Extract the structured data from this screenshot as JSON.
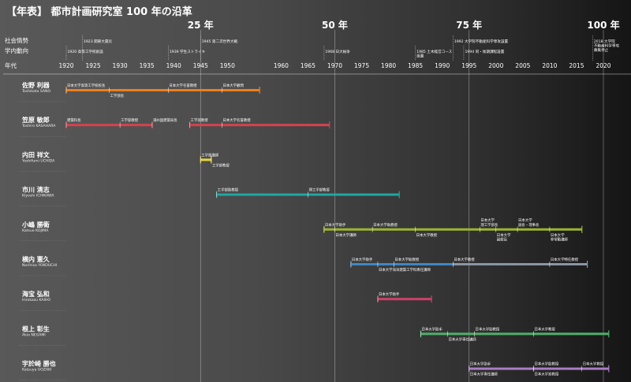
{
  "title": "【年表】 都市計画研究室 100 年の沿革",
  "row_labels": {
    "social": "社会情勢",
    "campus": "学内動向",
    "year": "年代"
  },
  "chart_data": {
    "type": "timeline",
    "x_range": [
      1920,
      2020
    ],
    "x_ticks": [
      1920,
      1925,
      1930,
      1935,
      1940,
      1945,
      1950,
      1960,
      1965,
      1970,
      1975,
      1980,
      1985,
      1990,
      1995,
      2000,
      2005,
      2010,
      2015,
      2020
    ],
    "anniversaries": [
      {
        "year": 1945,
        "label": "25 年"
      },
      {
        "year": 1970,
        "label": "50 年"
      },
      {
        "year": 1995,
        "label": "75 年"
      },
      {
        "year": 2020,
        "label": "100 年"
      }
    ],
    "social_events": [
      {
        "year": 1923,
        "lines": [
          "1923 関東大震災"
        ]
      },
      {
        "year": 1945,
        "lines": [
          "1945 第二次世界大戦"
        ]
      },
      {
        "year": 1992,
        "lines": [
          "1992 大学院不動産科学専攻設置"
        ]
      },
      {
        "year": 2018,
        "lines": [
          "2018 大学院",
          "不動産科学専攻",
          "募集停止"
        ]
      }
    ],
    "campus_events": [
      {
        "year": 1920,
        "lines": [
          "1920 高等工学校創設"
        ]
      },
      {
        "year": 1939,
        "lines": [
          "1939 学生ストライキ"
        ]
      },
      {
        "year": 1968,
        "lines": [
          "1968 日大紛争"
        ]
      },
      {
        "year": 1985,
        "lines": [
          "1985 土木経営コース",
          "設置"
        ]
      },
      {
        "year": 1994,
        "lines": [
          "1994 同・後期課程設置"
        ]
      }
    ],
    "people": [
      {
        "name": "佐野 利器",
        "roman": "Toshikata SANO",
        "color": "#f07e1a",
        "start": 1920,
        "end": 1956,
        "labels": [
          {
            "year": 1920,
            "pos": "above",
            "text": "日本大学高等工学校校長"
          },
          {
            "year": 1939,
            "pos": "above",
            "text": "日本大学名誉教授"
          },
          {
            "year": 1949,
            "pos": "above",
            "text": "日本大学顧問"
          },
          {
            "year": 1928,
            "pos": "below",
            "text": "工学部長"
          }
        ]
      },
      {
        "name": "笠原 敏郎",
        "roman": "Toshiro KASAHARA",
        "color": "#d9414e",
        "start": 1920,
        "end": 1969,
        "gap": [
          1936,
          1943
        ],
        "labels": [
          {
            "year": 1920,
            "pos": "above",
            "text": "建築科長"
          },
          {
            "year": 1930,
            "pos": "above",
            "text": "工学部教授"
          },
          {
            "year": 1936,
            "pos": "above",
            "text": "満州国建築局長"
          },
          {
            "year": 1943,
            "pos": "above",
            "text": "工学部教授"
          },
          {
            "year": 1949,
            "pos": "above",
            "text": "日本大学名誉教授"
          }
        ]
      },
      {
        "name": "内田 祥文",
        "roman": "Yoshifumi UCHIDA",
        "color": "#e7d63a",
        "start": 1945,
        "end": 1947,
        "labels": [
          {
            "year": 1945,
            "pos": "above",
            "text": "工学部講師"
          },
          {
            "year": 1947,
            "pos": "below",
            "text": "工学部教授"
          }
        ]
      },
      {
        "name": "市川 清志",
        "roman": "Kiyoshi ICHIKAWA",
        "color": "#1fa7a4",
        "start": 1948,
        "end": 1982,
        "labels": [
          {
            "year": 1948,
            "pos": "above",
            "text": "工学部助教授"
          },
          {
            "year": 1965,
            "pos": "above",
            "text": "理工学部教授"
          }
        ]
      },
      {
        "name": "小嶋 勝衛",
        "roman": "Katsue KOJIMA",
        "color": "#9bb42f",
        "start": 1968,
        "end": 2016,
        "labels": [
          {
            "year": 1968,
            "pos": "above",
            "text": "日本大学助手"
          },
          {
            "year": 1977,
            "pos": "above",
            "text": "日本大学助教授"
          },
          {
            "year": 1997,
            "pos": "above",
            "text": "日本大学"
          },
          {
            "year": 1997,
            "pos": "above2",
            "text": "理工学部長"
          },
          {
            "year": 2004,
            "pos": "above",
            "text": "日本大学"
          },
          {
            "year": 2004,
            "pos": "above2",
            "text": "副長・理事長"
          },
          {
            "year": 1970,
            "pos": "below",
            "text": "日本大学講師"
          },
          {
            "year": 1985,
            "pos": "below",
            "text": "日本大学教授"
          },
          {
            "year": 2000,
            "pos": "below",
            "text": "日本大学"
          },
          {
            "year": 2000,
            "pos": "below2",
            "text": "副総長"
          },
          {
            "year": 2010,
            "pos": "below",
            "text": "日本大学"
          },
          {
            "year": 2010,
            "pos": "below2",
            "text": "非常勤講師"
          }
        ]
      },
      {
        "name": "横内 憲久",
        "roman": "Norihisa YOKOUCHI",
        "color": "#3f86c6",
        "color2": "#8a95a3",
        "start": 1973,
        "end": 2017,
        "labels": [
          {
            "year": 1973,
            "pos": "above",
            "text": "日本大学助手"
          },
          {
            "year": 1981,
            "pos": "above",
            "text": "日本大学助教授"
          },
          {
            "year": 1992,
            "pos": "above",
            "text": "日本大学教授"
          },
          {
            "year": 2010,
            "pos": "above",
            "text": "日本大学特任教授"
          },
          {
            "year": 1978,
            "pos": "below",
            "text": "日本大学海洋建築工学科専任講師"
          }
        ]
      },
      {
        "name": "海宝 弘和",
        "roman": "Hirokazu KAIHO",
        "color": "#d43f6a",
        "start": 1978,
        "end": 1988,
        "labels": [
          {
            "year": 1978,
            "pos": "above",
            "text": "日本大学助手"
          }
        ]
      },
      {
        "name": "根上 彰生",
        "roman": "Akio NEGAMI",
        "color": "#4fb06a",
        "start": 1986,
        "end": 2021,
        "labels": [
          {
            "year": 1986,
            "pos": "above",
            "text": "日本大学助手"
          },
          {
            "year": 1996,
            "pos": "above",
            "text": "日本大学助教授"
          },
          {
            "year": 2007,
            "pos": "above",
            "text": "日本大学教授"
          },
          {
            "year": 1991,
            "pos": "below",
            "text": "日本大学専任講師"
          }
        ]
      },
      {
        "name": "宇於崎 勝也",
        "roman": "Katsuya UOZAKI",
        "color": "#a97ec4",
        "start": 1995,
        "end": 2021,
        "labels": [
          {
            "year": 1995,
            "pos": "above",
            "text": "日本大学助手"
          },
          {
            "year": 2007,
            "pos": "above",
            "text": "日本大学助教授"
          },
          {
            "year": 2016,
            "pos": "above",
            "text": "日本大学教授"
          },
          {
            "year": 1995,
            "pos": "below",
            "text": "日本大学専任講師"
          },
          {
            "year": 2007,
            "pos": "below",
            "text": "日本大学准教授"
          }
        ]
      }
    ]
  }
}
